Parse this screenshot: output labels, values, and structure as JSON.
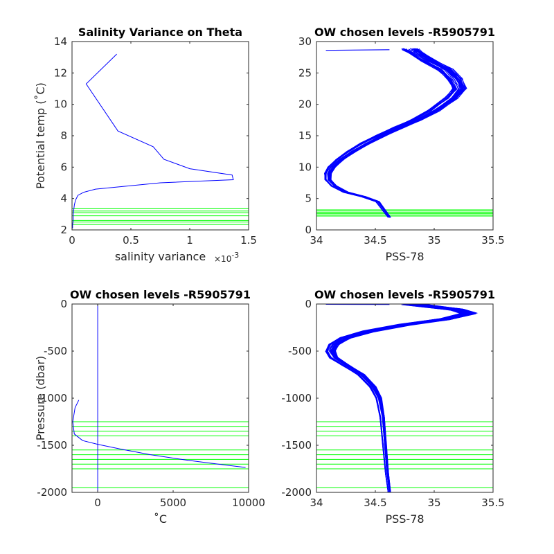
{
  "chart_data": [
    {
      "type": "line",
      "title": "Salinity Variance on Theta",
      "xlabel": "salinity variance",
      "x_multiplier": "×10",
      "x_multiplier_exp": "-3",
      "ylabel": "Potential temp (˚C)",
      "xlim": [
        0,
        1.5
      ],
      "ylim": [
        2,
        14
      ],
      "xticks": [
        "0",
        "0.5",
        "1",
        "1.5"
      ],
      "yticks": [
        "2",
        "4",
        "6",
        "8",
        "10",
        "12",
        "14"
      ],
      "series": [
        {
          "color": "#0000ff",
          "x": [
            0.38,
            0.12,
            0.39,
            0.69,
            0.78,
            1.0,
            1.36,
            1.37,
            0.75,
            0.2,
            0.1,
            0.05,
            0.03,
            0.02,
            0.01,
            0.01,
            0.005,
            0.005
          ],
          "y": [
            13.2,
            11.3,
            8.3,
            7.3,
            6.5,
            5.9,
            5.5,
            5.2,
            5.0,
            4.6,
            4.4,
            4.2,
            3.9,
            3.6,
            3.0,
            2.6,
            2.3,
            2.1
          ]
        }
      ],
      "hlines": [
        2.35,
        2.5,
        2.6,
        2.9,
        3.1,
        3.2,
        3.35
      ],
      "hline_color": "#00ff00"
    },
    {
      "type": "line",
      "title": "OW chosen levels -R5905791",
      "xlabel": "PSS-78",
      "ylabel": "",
      "xlim": [
        34,
        35.5
      ],
      "ylim": [
        0,
        30
      ],
      "xticks": [
        "34",
        "34.5",
        "35",
        "35.5"
      ],
      "yticks": [
        "0",
        "5",
        "10",
        "15",
        "20",
        "25",
        "30"
      ],
      "series": [
        {
          "color": "#0000ff",
          "profile_count": 36,
          "x": [
            34.62,
            34.58,
            34.52,
            34.4,
            34.25,
            34.15,
            34.1,
            34.1,
            34.13,
            34.2,
            34.3,
            34.42,
            34.55,
            34.7,
            34.85,
            35.0,
            35.15,
            35.22,
            35.18,
            35.1,
            34.95,
            34.85,
            34.8
          ],
          "y": [
            2.0,
            3.0,
            4.5,
            5.3,
            6.0,
            7.0,
            8.0,
            9.0,
            10.0,
            11.2,
            12.5,
            13.8,
            15.0,
            16.3,
            17.5,
            19.0,
            21.0,
            22.5,
            24.0,
            25.5,
            27.0,
            28.2,
            28.8
          ]
        }
      ],
      "outlier_line": {
        "x": [
          34.08,
          34.62
        ],
        "y": [
          28.6,
          28.7
        ]
      },
      "hlines": [
        2.2,
        2.4,
        2.6,
        2.8,
        3.0,
        3.2
      ],
      "hline_color": "#00ff00"
    },
    {
      "type": "line",
      "title": "OW chosen levels -R5905791",
      "xlabel": "˚C",
      "ylabel": "Pressure (dbar)",
      "xlim": [
        -1700,
        10000
      ],
      "ylim": [
        -2000,
        0
      ],
      "xticks": [
        "0",
        "5000",
        "10000"
      ],
      "xtick_values": [
        0,
        5000,
        10000
      ],
      "yticks": [
        "-2000",
        "-1500",
        "-1000",
        "-500",
        "0"
      ],
      "series": [
        {
          "color": "#0000ff",
          "x": [
            -1250,
            -1500,
            -1650,
            -1550,
            -1000,
            0,
            1500,
            3500,
            6000,
            8500,
            9800
          ],
          "y": [
            -1020,
            -1100,
            -1250,
            -1380,
            -1450,
            -1490,
            -1540,
            -1600,
            -1660,
            -1710,
            -1735
          ]
        },
        {
          "color": "#0000ff",
          "x": [
            0,
            0,
            0,
            0,
            0
          ],
          "y": [
            0,
            -200,
            -800,
            -1500,
            -1990
          ]
        }
      ],
      "hlines": [
        -1250,
        -1300,
        -1350,
        -1400,
        -1550,
        -1600,
        -1650,
        -1700,
        -1750,
        -1950
      ],
      "hline_color": "#00ff00"
    },
    {
      "type": "line",
      "title": "OW chosen levels -R5905791",
      "xlabel": "PSS-78",
      "ylabel": "",
      "xlim": [
        34,
        35.5
      ],
      "ylim": [
        -2000,
        0
      ],
      "xticks": [
        "34",
        "34.5",
        "35",
        "35.5"
      ],
      "yticks": [
        "-2000",
        "-1500",
        "-1000",
        "-500",
        "0"
      ],
      "series": [
        {
          "color": "#0000ff",
          "profile_count": 36,
          "x": [
            34.8,
            35.0,
            35.2,
            35.3,
            35.1,
            34.75,
            34.45,
            34.25,
            34.15,
            34.12,
            34.15,
            34.25,
            34.38,
            34.48,
            34.53,
            34.56,
            34.58,
            34.6,
            34.62
          ],
          "y": [
            0,
            -30,
            -60,
            -100,
            -160,
            -220,
            -290,
            -360,
            -430,
            -500,
            -570,
            -650,
            -750,
            -880,
            -1000,
            -1200,
            -1500,
            -1800,
            -2000
          ]
        }
      ],
      "outlier_line": {
        "x": [
          34.08,
          34.62
        ],
        "y": [
          -3,
          -5
        ]
      },
      "hlines": [
        -1250,
        -1300,
        -1350,
        -1400,
        -1550,
        -1600,
        -1650,
        -1700,
        -1750,
        -1950
      ],
      "hline_color": "#00ff00"
    }
  ]
}
